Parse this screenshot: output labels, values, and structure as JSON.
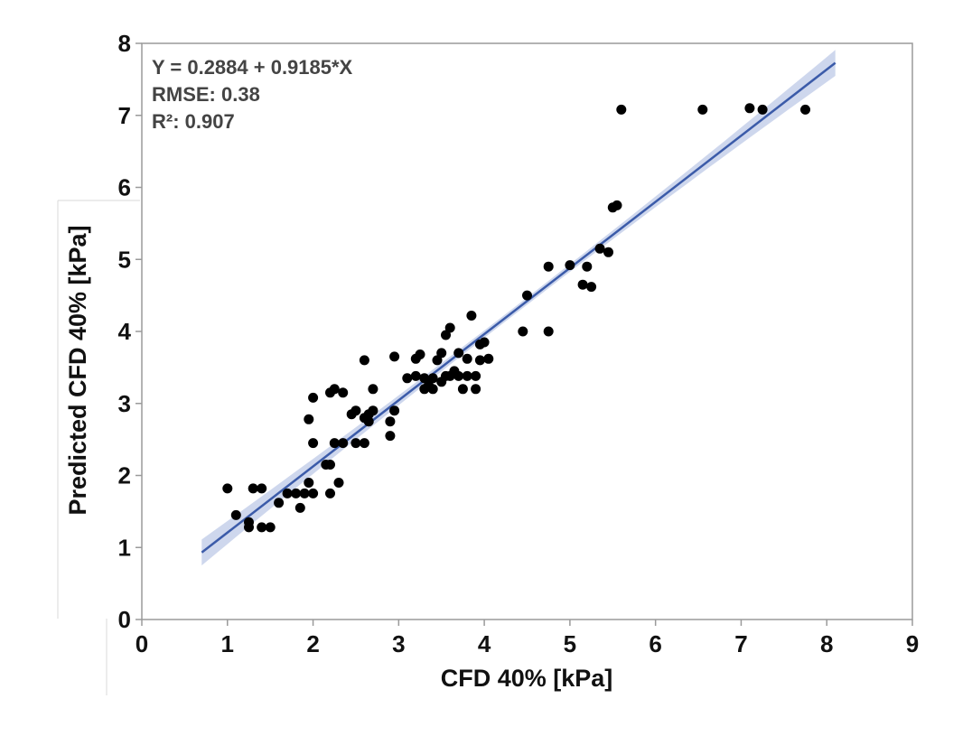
{
  "chart_data": {
    "type": "scatter",
    "xlabel": "CFD 40% [kPa]",
    "ylabel": "Predicted CFD 40% [kPa]",
    "xlim": [
      0,
      9
    ],
    "ylim": [
      0,
      8
    ],
    "xticks": [
      0,
      1,
      2,
      3,
      4,
      5,
      6,
      7,
      8,
      9
    ],
    "yticks": [
      0,
      1,
      2,
      3,
      4,
      5,
      6,
      7,
      8
    ],
    "grid": false,
    "annotations": [
      "Y = 0.2884 + 0.9185*X",
      "RMSE: 0.38",
      "R²: 0.907"
    ],
    "colors": {
      "points": "#000000",
      "fit_line": "#3b5ba9",
      "confidence_band": "#c5d0ea"
    },
    "fit": {
      "intercept": 0.2884,
      "slope": 0.9185,
      "x_range": [
        0.7,
        8.1
      ],
      "band_halfwidth_ends": 0.18,
      "band_halfwidth_mid": 0.05
    },
    "points": [
      [
        1.0,
        1.82
      ],
      [
        1.1,
        1.45
      ],
      [
        1.25,
        1.28
      ],
      [
        1.25,
        1.35
      ],
      [
        1.3,
        1.82
      ],
      [
        1.4,
        1.82
      ],
      [
        1.4,
        1.28
      ],
      [
        1.5,
        1.28
      ],
      [
        1.6,
        1.62
      ],
      [
        1.7,
        1.75
      ],
      [
        1.8,
        1.75
      ],
      [
        1.85,
        1.55
      ],
      [
        1.9,
        1.75
      ],
      [
        1.95,
        1.9
      ],
      [
        2.0,
        1.75
      ],
      [
        1.95,
        2.78
      ],
      [
        2.0,
        2.45
      ],
      [
        2.0,
        3.08
      ],
      [
        2.15,
        2.15
      ],
      [
        2.2,
        2.15
      ],
      [
        2.2,
        1.75
      ],
      [
        2.25,
        2.45
      ],
      [
        2.2,
        3.15
      ],
      [
        2.25,
        3.2
      ],
      [
        2.3,
        1.9
      ],
      [
        2.35,
        2.45
      ],
      [
        2.35,
        3.15
      ],
      [
        2.45,
        2.85
      ],
      [
        2.5,
        2.45
      ],
      [
        2.5,
        2.9
      ],
      [
        2.6,
        2.45
      ],
      [
        2.6,
        2.8
      ],
      [
        2.6,
        3.6
      ],
      [
        2.65,
        2.75
      ],
      [
        2.65,
        2.85
      ],
      [
        2.7,
        2.9
      ],
      [
        2.7,
        3.2
      ],
      [
        2.9,
        2.55
      ],
      [
        2.9,
        2.75
      ],
      [
        2.95,
        2.9
      ],
      [
        2.95,
        3.65
      ],
      [
        3.1,
        3.35
      ],
      [
        3.2,
        3.38
      ],
      [
        3.2,
        3.62
      ],
      [
        3.25,
        3.68
      ],
      [
        3.3,
        3.2
      ],
      [
        3.3,
        3.35
      ],
      [
        3.35,
        3.25
      ],
      [
        3.4,
        3.2
      ],
      [
        3.4,
        3.35
      ],
      [
        3.45,
        3.6
      ],
      [
        3.5,
        3.7
      ],
      [
        3.5,
        3.3
      ],
      [
        3.55,
        3.38
      ],
      [
        3.55,
        3.95
      ],
      [
        3.6,
        4.05
      ],
      [
        3.6,
        3.38
      ],
      [
        3.65,
        3.45
      ],
      [
        3.7,
        3.7
      ],
      [
        3.7,
        3.38
      ],
      [
        3.75,
        3.2
      ],
      [
        3.8,
        3.62
      ],
      [
        3.85,
        4.22
      ],
      [
        3.8,
        3.38
      ],
      [
        3.9,
        3.38
      ],
      [
        3.9,
        3.2
      ],
      [
        3.95,
        3.6
      ],
      [
        3.95,
        3.82
      ],
      [
        4.0,
        3.85
      ],
      [
        4.05,
        3.62
      ],
      [
        4.45,
        4.0
      ],
      [
        4.5,
        4.5
      ],
      [
        4.75,
        4.9
      ],
      [
        4.75,
        4.0
      ],
      [
        5.0,
        4.92
      ],
      [
        5.15,
        4.65
      ],
      [
        5.2,
        4.9
      ],
      [
        5.25,
        4.62
      ],
      [
        5.35,
        5.15
      ],
      [
        5.45,
        5.1
      ],
      [
        5.5,
        5.72
      ],
      [
        5.55,
        5.75
      ],
      [
        5.6,
        7.08
      ],
      [
        6.55,
        7.08
      ],
      [
        7.1,
        7.1
      ],
      [
        7.25,
        7.08
      ],
      [
        7.75,
        7.08
      ]
    ]
  }
}
